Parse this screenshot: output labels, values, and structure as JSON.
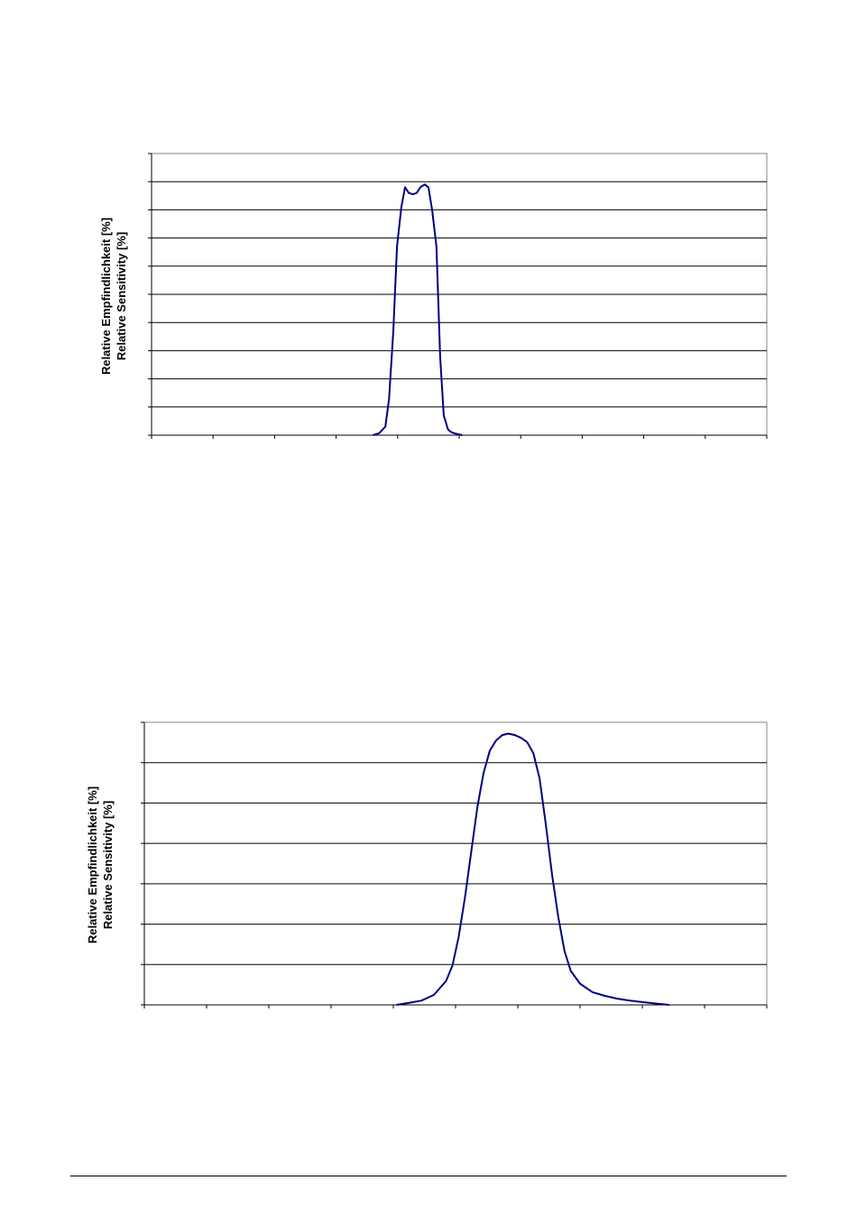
{
  "chart_data": [
    {
      "type": "line",
      "ylabel_lines": [
        "Relative Empfindlichkeit [%]",
        "Relative Sensitivity [%]"
      ],
      "grid": true,
      "xlim": [
        0,
        100
      ],
      "ylim": [
        0,
        100
      ],
      "series_color": "#000080",
      "x": [
        36,
        37,
        38,
        38.6,
        39.3,
        39.9,
        40.6,
        41.2,
        41.8,
        42.5,
        43.1,
        43.7,
        44.4,
        45,
        45.6,
        46.3,
        46.9,
        47.5,
        48.2,
        48.8,
        49.5,
        50.1,
        50.5
      ],
      "y": [
        0,
        0.7,
        3,
        13,
        37,
        67,
        81,
        88,
        86,
        85.5,
        86,
        88,
        89,
        88,
        80,
        67,
        28,
        7,
        2,
        1,
        0.5,
        0.2,
        0
      ]
    },
    {
      "type": "line",
      "ylabel_lines": [
        "Relative Empfindlichkeit [%]",
        "Relative Sensitivity [%]"
      ],
      "grid": true,
      "xlim": [
        0,
        100
      ],
      "ylim": [
        0,
        100
      ],
      "series_color": "#000080",
      "x": [
        40.5,
        42.5,
        44.5,
        46.5,
        48.5,
        49.5,
        50.5,
        51.5,
        52.5,
        53.5,
        54.5,
        55.5,
        56.5,
        57.5,
        58.5,
        59.5,
        60.5,
        61.5,
        62.5,
        63.5,
        64.5,
        65.5,
        66.5,
        67.5,
        68.5,
        70,
        72,
        74,
        76,
        78,
        80,
        82,
        84.3
      ],
      "y": [
        0,
        0.7,
        1.5,
        3.5,
        8.5,
        14,
        24,
        38,
        54,
        70,
        82,
        90,
        93.5,
        95.5,
        96,
        95.5,
        94.5,
        93,
        89,
        80,
        64,
        46,
        31,
        19,
        12,
        7.5,
        4.5,
        3.2,
        2.2,
        1.5,
        1,
        0.5,
        0
      ]
    }
  ]
}
